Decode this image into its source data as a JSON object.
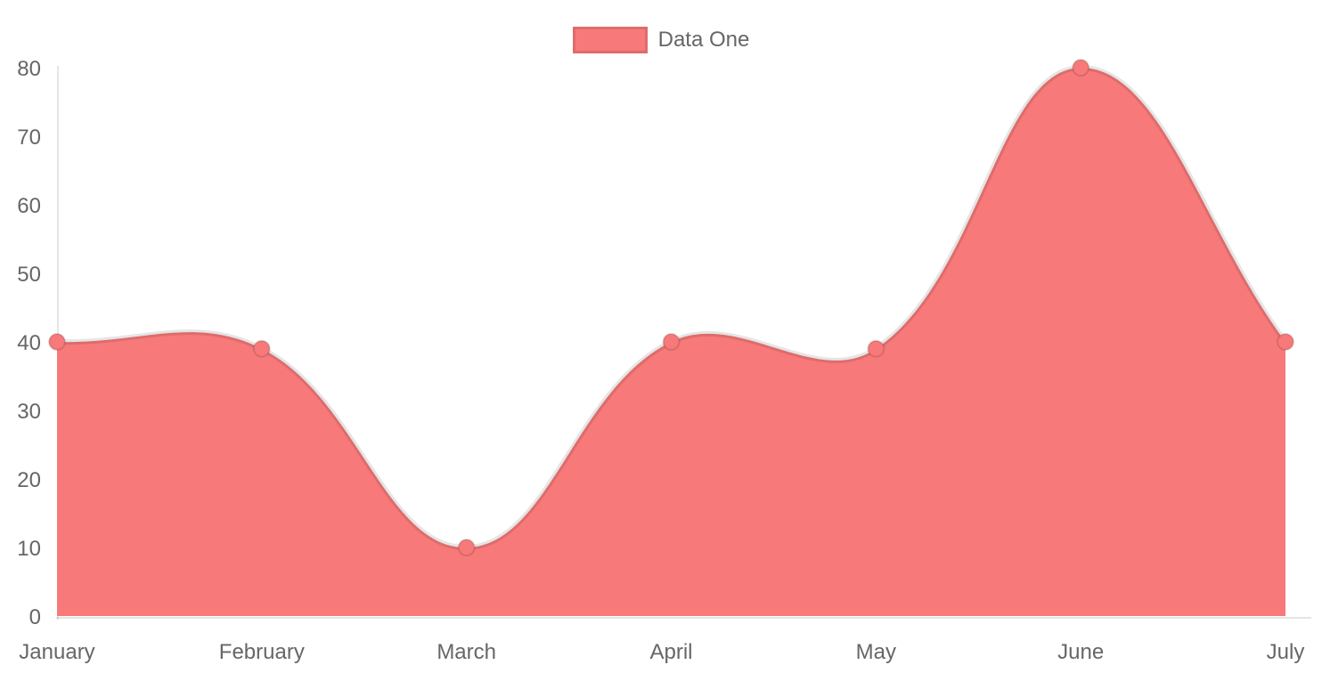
{
  "legend": {
    "label": "Data One",
    "swatch_color": "#f87979",
    "position": "top"
  },
  "chart_data": {
    "type": "area",
    "title": "",
    "xlabel": "",
    "ylabel": "",
    "categories": [
      "January",
      "February",
      "March",
      "April",
      "May",
      "June",
      "July"
    ],
    "series": [
      {
        "name": "Data One",
        "values": [
          40,
          39,
          10,
          40,
          39,
          80,
          40
        ]
      }
    ],
    "ylim": [
      0,
      80
    ],
    "y_ticks": [
      0,
      10,
      20,
      30,
      40,
      50,
      60,
      70,
      80
    ],
    "grid": "off",
    "axis_lines": "left-and-bottom",
    "legend_position": "top",
    "line_tension": 0.4,
    "colors": {
      "fill": "#f87979",
      "line": "rgba(0,0,0,0.1)",
      "point_fill": "#f87979",
      "point_border": "rgba(0,0,0,0.12)",
      "axis_line": "rgba(0,0,0,0.1)",
      "tick_text": "#666666",
      "background": "#ffffff"
    }
  }
}
